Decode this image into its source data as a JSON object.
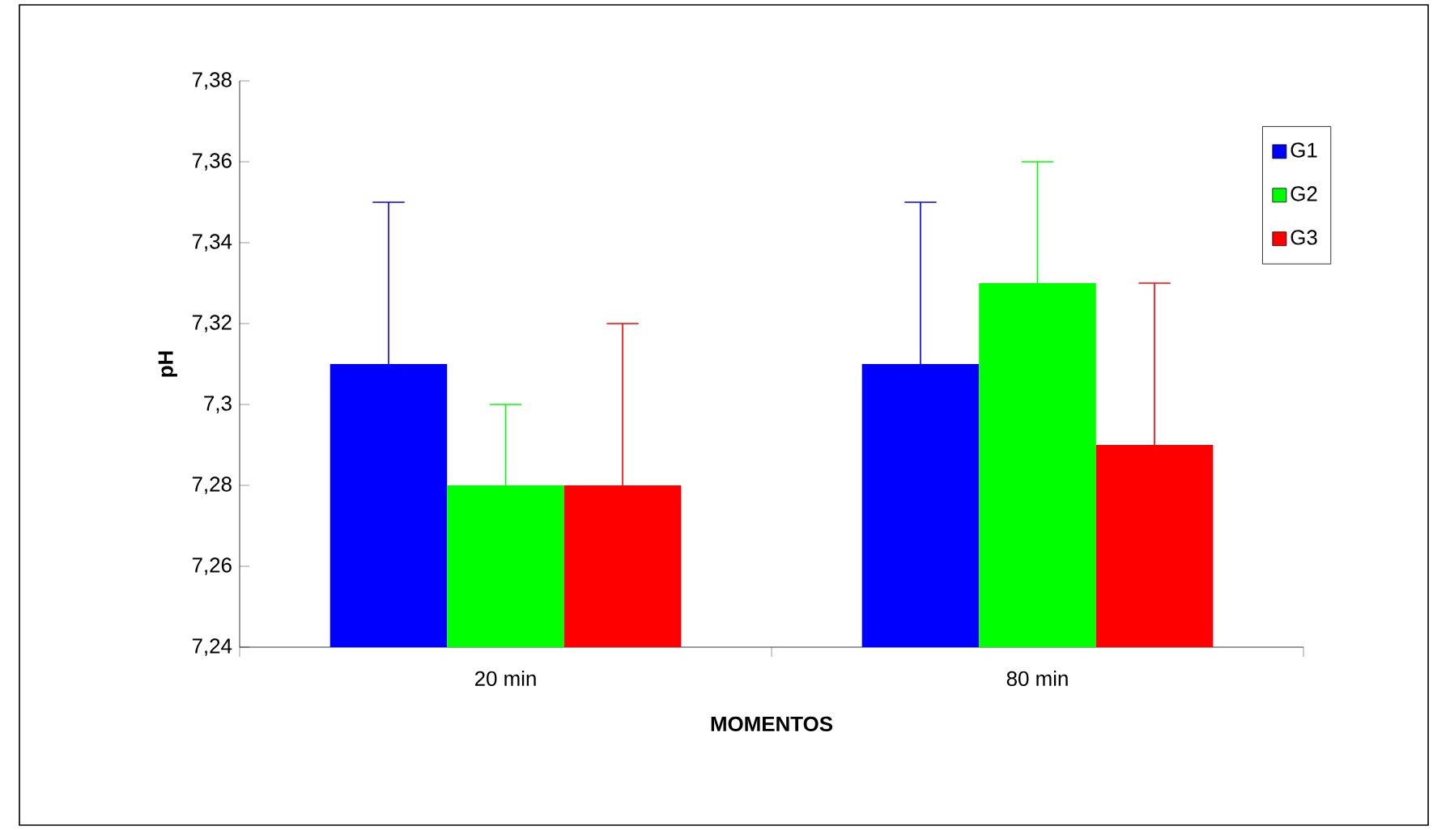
{
  "chart_data": {
    "type": "bar",
    "xlabel": "MOMENTOS",
    "ylabel": "pH",
    "categories": [
      "20 min",
      "80 min"
    ],
    "series": [
      {
        "name": "G1",
        "color": "#0000ff",
        "values": [
          7.31,
          7.31
        ],
        "errors": [
          [
            7.31,
            7.35
          ],
          [
            7.31,
            7.35
          ]
        ]
      },
      {
        "name": "G2",
        "color": "#00ff00",
        "values": [
          7.28,
          7.33
        ],
        "errors": [
          [
            7.28,
            7.3
          ],
          [
            7.33,
            7.36
          ]
        ]
      },
      {
        "name": "G3",
        "color": "#ff0000",
        "values": [
          7.28,
          7.29
        ],
        "errors": [
          [
            7.28,
            7.32
          ],
          [
            7.29,
            7.33
          ]
        ]
      }
    ],
    "ylim": [
      7.24,
      7.38
    ],
    "yticks": [
      {
        "value": 7.24,
        "label": "7,24"
      },
      {
        "value": 7.26,
        "label": "7,26"
      },
      {
        "value": 7.28,
        "label": "7,28"
      },
      {
        "value": 7.3,
        "label": "7,3"
      },
      {
        "value": 7.32,
        "label": "7,32"
      },
      {
        "value": 7.34,
        "label": "7,34"
      },
      {
        "value": 7.36,
        "label": "7,36"
      },
      {
        "value": 7.38,
        "label": "7,38"
      }
    ],
    "grid": false,
    "legend": "top right"
  }
}
